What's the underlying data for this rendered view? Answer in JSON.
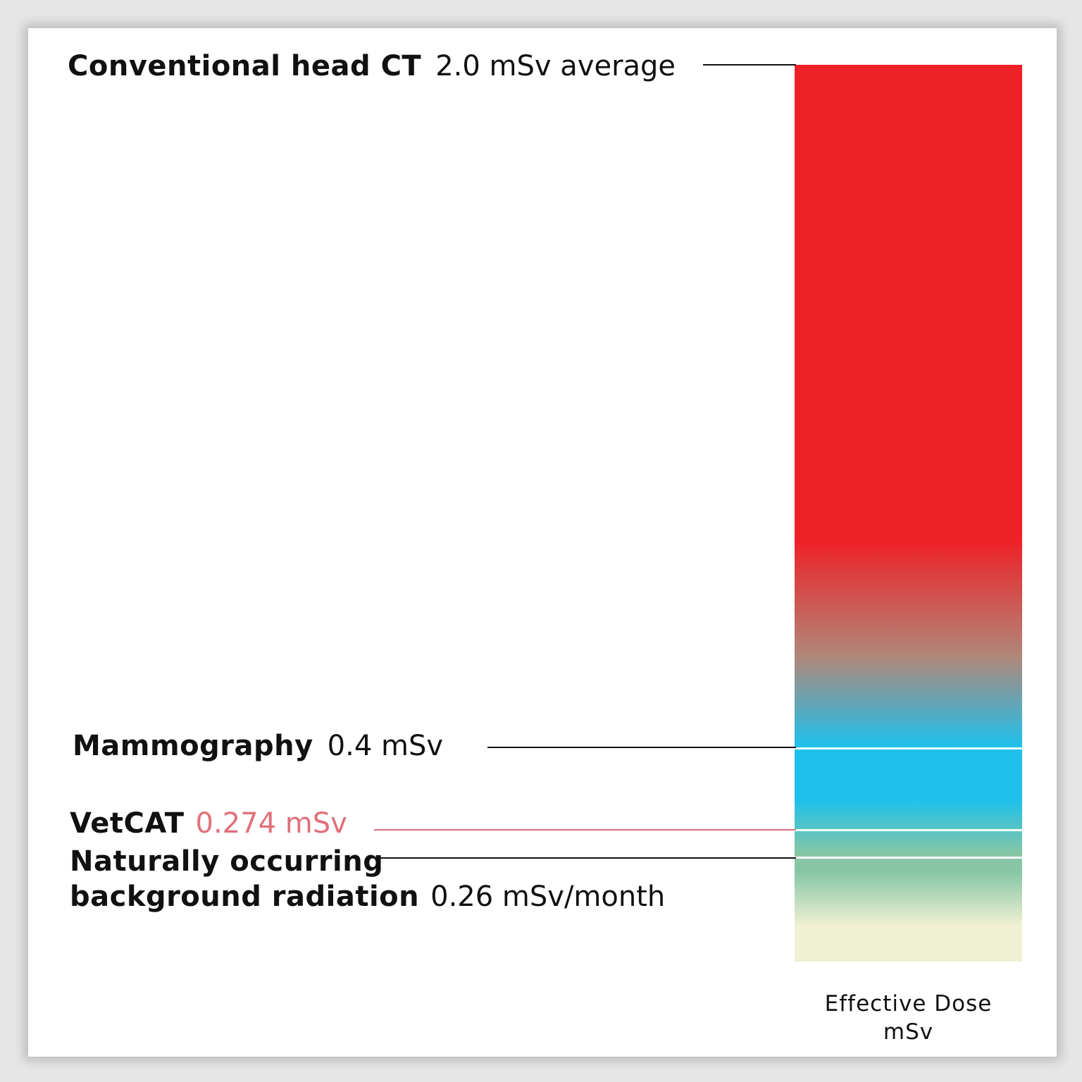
{
  "chart_data": {
    "type": "bar",
    "series_title": "Effective Dose",
    "unit": "mSv",
    "ylim": [
      0,
      2.0
    ],
    "grid": false,
    "colors": {
      "high": "#ee2127",
      "mid": "#b0877a",
      "mammography": "#1fc1ec",
      "vetcat": "#86c6a4",
      "background": "#f0f0d2",
      "vetcat_text": "#e0707a"
    },
    "markers": [
      {
        "id": "ct",
        "label": "Conventional head CT",
        "value_text": "2.0 mSv average",
        "value": 2.0,
        "color": "#111111"
      },
      {
        "id": "mammography",
        "label": "Mammography",
        "value_text": "0.4 mSv",
        "value": 0.4,
        "color": "#111111"
      },
      {
        "id": "vetcat",
        "label": "VetCAT",
        "value_text": "0.274 mSv",
        "value": 0.274,
        "color": "#e0707a"
      },
      {
        "id": "background",
        "label_line1": "Naturally occurring",
        "label_line2": "background radiation",
        "value_text": "0.26 mSv/month",
        "value": 0.26,
        "color": "#111111"
      }
    ],
    "xlabel": "Effective Dose",
    "xlabel_unit": "mSv"
  }
}
